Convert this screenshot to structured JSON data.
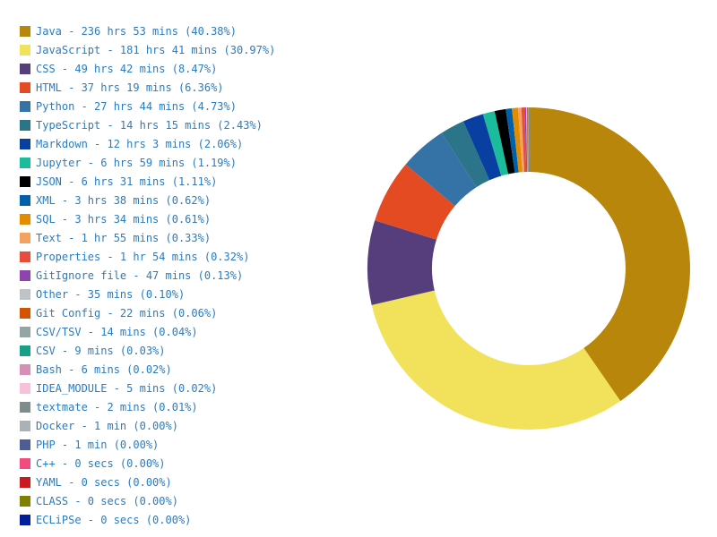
{
  "chart": {
    "type": "donut",
    "background": "#ffffff",
    "svg_size": 400,
    "outer_radius": 180,
    "inner_radius": 108,
    "start_angle_deg": -90,
    "legend_text_color": "#2a7cbf",
    "legend_fontsize": 12,
    "swatch_size": 12,
    "entries": [
      {
        "name": "Java",
        "time": "236 hrs 53 mins",
        "percent": 40.38,
        "color": "#b8860b"
      },
      {
        "name": "JavaScript",
        "time": "181 hrs 41 mins",
        "percent": 30.97,
        "color": "#f1e15b"
      },
      {
        "name": "CSS",
        "time": "49 hrs 42 mins",
        "percent": 8.47,
        "color": "#563d7c"
      },
      {
        "name": "HTML",
        "time": "37 hrs 19 mins",
        "percent": 6.36,
        "color": "#e44b23"
      },
      {
        "name": "Python",
        "time": "27 hrs 44 mins",
        "percent": 4.73,
        "color": "#3572a5"
      },
      {
        "name": "TypeScript",
        "time": "14 hrs 15 mins",
        "percent": 2.43,
        "color": "#2b7489"
      },
      {
        "name": "Markdown",
        "time": "12 hrs 3 mins",
        "percent": 2.06,
        "color": "#083fa1"
      },
      {
        "name": "Jupyter",
        "time": "6 hrs 59 mins",
        "percent": 1.19,
        "color": "#1abc9c"
      },
      {
        "name": "JSON",
        "time": "6 hrs 31 mins",
        "percent": 1.11,
        "color": "#000000"
      },
      {
        "name": "XML",
        "time": "3 hrs 38 mins",
        "percent": 0.62,
        "color": "#0060ac"
      },
      {
        "name": "SQL",
        "time": "3 hrs 34 mins",
        "percent": 0.61,
        "color": "#e38c00"
      },
      {
        "name": "Text",
        "time": "1 hr 55 mins",
        "percent": 0.33,
        "color": "#f4a261"
      },
      {
        "name": "Properties",
        "time": "1 hr 54 mins",
        "percent": 0.32,
        "color": "#e74c3c"
      },
      {
        "name": "GitIgnore file",
        "time": "47 mins",
        "percent": 0.13,
        "color": "#8e44ad"
      },
      {
        "name": "Other",
        "time": "35 mins",
        "percent": 0.1,
        "color": "#bdc3c7"
      },
      {
        "name": "Git Config",
        "time": "22 mins",
        "percent": 0.06,
        "color": "#d35400"
      },
      {
        "name": "CSV/TSV",
        "time": "14 mins",
        "percent": 0.04,
        "color": "#95a5a6"
      },
      {
        "name": "CSV",
        "time": "9 mins",
        "percent": 0.03,
        "color": "#16a085"
      },
      {
        "name": "Bash",
        "time": "6 mins",
        "percent": 0.02,
        "color": "#d68fb5"
      },
      {
        "name": "IDEA_MODULE",
        "time": "5 mins",
        "percent": 0.02,
        "color": "#f8c1d9"
      },
      {
        "name": "textmate",
        "time": "2 mins",
        "percent": 0.01,
        "color": "#7f8c8d"
      },
      {
        "name": "Docker",
        "time": "1 min",
        "percent": 0.0,
        "color": "#aab1b7"
      },
      {
        "name": "PHP",
        "time": "1 min",
        "percent": 0.0,
        "color": "#4f5d95"
      },
      {
        "name": "C++",
        "time": "0 secs",
        "percent": 0.0,
        "color": "#f34b7d"
      },
      {
        "name": "YAML",
        "time": "0 secs",
        "percent": 0.0,
        "color": "#cb171e"
      },
      {
        "name": "CLASS",
        "time": "0 secs",
        "percent": 0.0,
        "color": "#808000"
      },
      {
        "name": "ECLiPSe",
        "time": "0 secs",
        "percent": 0.0,
        "color": "#001d9d"
      }
    ]
  }
}
